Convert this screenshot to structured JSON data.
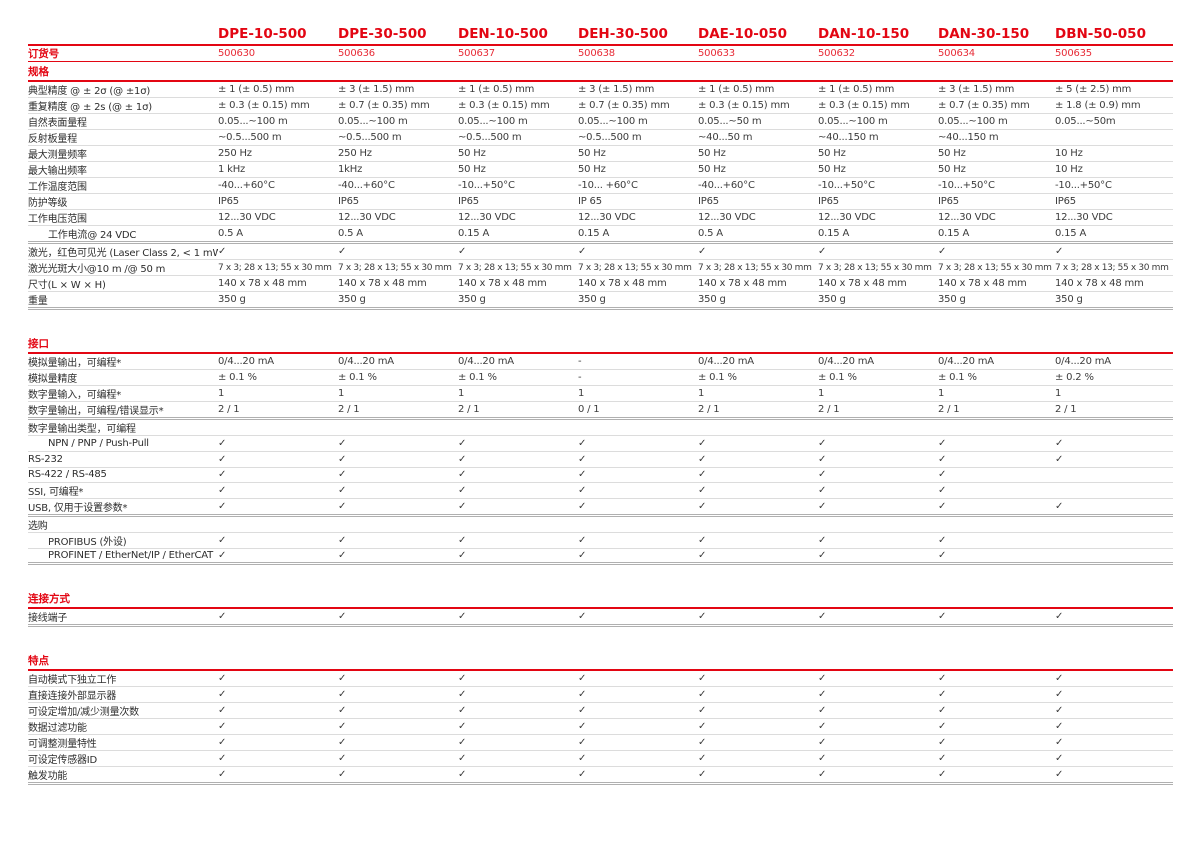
{
  "theme": {
    "accent": "#e30613",
    "text_color": "#3c3c3c"
  },
  "order_row_label": "订货号",
  "products": [
    {
      "model": "DPE-10-500",
      "order_no": "500630"
    },
    {
      "model": "DPE-30-500",
      "order_no": "500636"
    },
    {
      "model": "DEN-10-500",
      "order_no": "500637"
    },
    {
      "model": "DEH-30-500",
      "order_no": "500638"
    },
    {
      "model": "DAE-10-050",
      "order_no": "500633"
    },
    {
      "model": "DAN-10-150",
      "order_no": "500632"
    },
    {
      "model": "DAN-30-150",
      "order_no": "500634"
    },
    {
      "model": "DBN-50-050",
      "order_no": "500635"
    }
  ],
  "check_glyph": "✓",
  "sections": [
    {
      "title": "规格",
      "rows": [
        {
          "label": "典型精度 @ ± 2σ (@ ±1σ)",
          "values": [
            "± 1 (± 0.5) mm",
            "± 3 (± 1.5) mm",
            "± 1 (± 0.5) mm",
            "± 3 (± 1.5) mm",
            "± 1 (± 0.5) mm",
            "± 1 (± 0.5) mm",
            "± 3 (± 1.5) mm",
            "± 5 (± 2.5) mm"
          ]
        },
        {
          "label": "重复精度 @ ± 2s (@ ± 1σ)",
          "values": [
            "± 0.3 (± 0.15) mm",
            "± 0.7 (± 0.35) mm",
            "± 0.3 (± 0.15) mm",
            "± 0.7 (± 0.35) mm",
            "± 0.3 (± 0.15) mm",
            "± 0.3 (± 0.15) mm",
            "± 0.7 (± 0.35) mm",
            "± 1.8 (± 0.9) mm"
          ]
        },
        {
          "label": "自然表面量程",
          "values": [
            "0.05...~100 m",
            "0.05...~100 m",
            "0.05...~100 m",
            "0.05...~100 m",
            "0.05...~50 m",
            "0.05...~100 m",
            "0.05...~100 m",
            "0.05...~50m"
          ]
        },
        {
          "label": "反射板量程",
          "values": [
            "~0.5...500 m",
            "~0.5...500 m",
            "~0.5...500 m",
            "~0.5...500 m",
            "~40...50 m",
            "~40...150 m",
            "~40...150 m",
            ""
          ]
        },
        {
          "label": "最大测量频率",
          "values": [
            "250 Hz",
            "250 Hz",
            "50 Hz",
            "50 Hz",
            "50 Hz",
            "50 Hz",
            "50 Hz",
            "10 Hz"
          ]
        },
        {
          "label": "最大输出频率",
          "values": [
            "1 kHz",
            "1kHz",
            "50 Hz",
            "50 Hz",
            "50 Hz",
            "50 Hz",
            "50 Hz",
            "10 Hz"
          ]
        },
        {
          "label": "工作温度范围",
          "values": [
            "-40...+60°C",
            "-40...+60°C",
            "-10...+50°C",
            "-10... +60°C",
            "-40...+60°C",
            "-10...+50°C",
            "-10...+50°C",
            "-10...+50°C"
          ]
        },
        {
          "label": "防护等级",
          "values": [
            "IP65",
            "IP65",
            "IP65",
            "IP 65",
            "IP65",
            "IP65",
            "IP65",
            "IP65"
          ]
        },
        {
          "label": "工作电压范围",
          "values": [
            "12...30 VDC",
            "12...30 VDC",
            "12...30 VDC",
            "12...30 VDC",
            "12...30 VDC",
            "12...30 VDC",
            "12...30 VDC",
            "12...30 VDC"
          ]
        },
        {
          "label": "工作电流@ 24 VDC",
          "indent": true,
          "strong": true,
          "values": [
            "0.5 A",
            "0.5 A",
            "0.15 A",
            "0.15 A",
            "0.5 A",
            "0.15 A",
            "0.15 A",
            "0.15 A"
          ]
        },
        {
          "label": "激光，红色可见光 (Laser Class 2, < 1 mW)",
          "values": [
            "✓",
            "✓",
            "✓",
            "✓",
            "✓",
            "✓",
            "✓",
            "✓"
          ]
        },
        {
          "label": "激光光斑大小@10 m /@ 50 m",
          "small": true,
          "values": [
            "7 x 3; 28 x 13; 55 x 30 mm",
            "7 x 3; 28 x 13; 55 x 30 mm",
            "7 x 3; 28 x 13; 55 x 30 mm",
            "7 x 3; 28 x 13; 55 x 30 mm",
            "7 x 3; 28 x 13; 55 x 30 mm",
            "7 x 3; 28 x 13; 55 x 30 mm",
            "7 x 3; 28 x 13; 55 x 30 mm",
            "7 x 3; 28 x 13; 55 x 30 mm"
          ]
        },
        {
          "label": "尺寸(L × W × H)",
          "values": [
            "140 x 78 x 48 mm",
            "140 x 78 x 48 mm",
            "140 x 78 x 48 mm",
            "140 x 78 x 48 mm",
            "140 x 78 x 48 mm",
            "140 x 78 x 48 mm",
            "140 x 78 x 48 mm",
            "140 x 78 x 48 mm"
          ]
        },
        {
          "label": "重量",
          "strong": true,
          "values": [
            "350 g",
            "350 g",
            "350 g",
            "350 g",
            "350 g",
            "350 g",
            "350 g",
            "350 g"
          ]
        }
      ]
    },
    {
      "title": "接口",
      "rows": [
        {
          "label": "模拟量输出，可编程*",
          "values": [
            "0/4...20 mA",
            "0/4...20 mA",
            "0/4...20 mA",
            "-",
            "0/4...20 mA",
            "0/4...20 mA",
            "0/4...20 mA",
            "0/4...20 mA"
          ]
        },
        {
          "label": "模拟量精度",
          "values": [
            "± 0.1 %",
            "± 0.1 %",
            "± 0.1 %",
            "-",
            "± 0.1 %",
            "± 0.1 %",
            "± 0.1 %",
            "± 0.2 %"
          ]
        },
        {
          "label": "数字量输入，可编程*",
          "values": [
            "1",
            "1",
            "1",
            "1",
            "1",
            "1",
            "1",
            "1"
          ]
        },
        {
          "label": "数字量输出，可编程/错误显示*",
          "strong": true,
          "values": [
            "2 / 1",
            "2 / 1",
            "2 / 1",
            "0 / 1",
            "2 / 1",
            "2 / 1",
            "2 / 1",
            "2 / 1"
          ]
        },
        {
          "label": "数字量输出类型，可编程",
          "subheader": true,
          "values": [
            "",
            "",
            "",
            "",
            "",
            "",
            "",
            ""
          ]
        },
        {
          "label": "NPN / PNP / Push-Pull",
          "indent": true,
          "values": [
            "✓",
            "✓",
            "✓",
            "✓",
            "✓",
            "✓",
            "✓",
            "✓"
          ]
        },
        {
          "label": "RS-232",
          "values": [
            "✓",
            "✓",
            "✓",
            "✓",
            "✓",
            "✓",
            "✓",
            "✓"
          ]
        },
        {
          "label": "RS-422 / RS-485",
          "values": [
            "✓",
            "✓",
            "✓",
            "✓",
            "✓",
            "✓",
            "✓",
            ""
          ]
        },
        {
          "label": "SSI, 可编程*",
          "values": [
            "✓",
            "✓",
            "✓",
            "✓",
            "✓",
            "✓",
            "✓",
            ""
          ]
        },
        {
          "label": "USB, 仅用于设置参数*",
          "strong": true,
          "values": [
            "✓",
            "✓",
            "✓",
            "✓",
            "✓",
            "✓",
            "✓",
            "✓"
          ]
        },
        {
          "label": "选购",
          "subheader": true,
          "values": [
            "",
            "",
            "",
            "",
            "",
            "",
            "",
            ""
          ]
        },
        {
          "label": "PROFIBUS (外设)",
          "indent": true,
          "values": [
            "✓",
            "✓",
            "✓",
            "✓",
            "✓",
            "✓",
            "✓",
            ""
          ]
        },
        {
          "label": "PROFINET / EtherNet/IP / EtherCAT",
          "indent": true,
          "strong": true,
          "values": [
            "✓",
            "✓",
            "✓",
            "✓",
            "✓",
            "✓",
            "✓",
            ""
          ]
        }
      ]
    },
    {
      "title": "连接方式",
      "rows": [
        {
          "label": "接线端子",
          "strong": true,
          "values": [
            "✓",
            "✓",
            "✓",
            "✓",
            "✓",
            "✓",
            "✓",
            "✓"
          ]
        }
      ]
    },
    {
      "title": "特点",
      "rows": [
        {
          "label": "自动模式下独立工作",
          "values": [
            "✓",
            "✓",
            "✓",
            "✓",
            "✓",
            "✓",
            "✓",
            "✓"
          ]
        },
        {
          "label": "直接连接外部显示器",
          "values": [
            "✓",
            "✓",
            "✓",
            "✓",
            "✓",
            "✓",
            "✓",
            "✓"
          ]
        },
        {
          "label": "可设定增加/减少测量次数",
          "values": [
            "✓",
            "✓",
            "✓",
            "✓",
            "✓",
            "✓",
            "✓",
            "✓"
          ]
        },
        {
          "label": "数据过滤功能",
          "values": [
            "✓",
            "✓",
            "✓",
            "✓",
            "✓",
            "✓",
            "✓",
            "✓"
          ]
        },
        {
          "label": "可调整测量特性",
          "values": [
            "✓",
            "✓",
            "✓",
            "✓",
            "✓",
            "✓",
            "✓",
            "✓"
          ]
        },
        {
          "label": "可设定传感器ID",
          "values": [
            "✓",
            "✓",
            "✓",
            "✓",
            "✓",
            "✓",
            "✓",
            "✓"
          ]
        },
        {
          "label": "触发功能",
          "strong": true,
          "values": [
            "✓",
            "✓",
            "✓",
            "✓",
            "✓",
            "✓",
            "✓",
            "✓"
          ]
        }
      ]
    }
  ]
}
